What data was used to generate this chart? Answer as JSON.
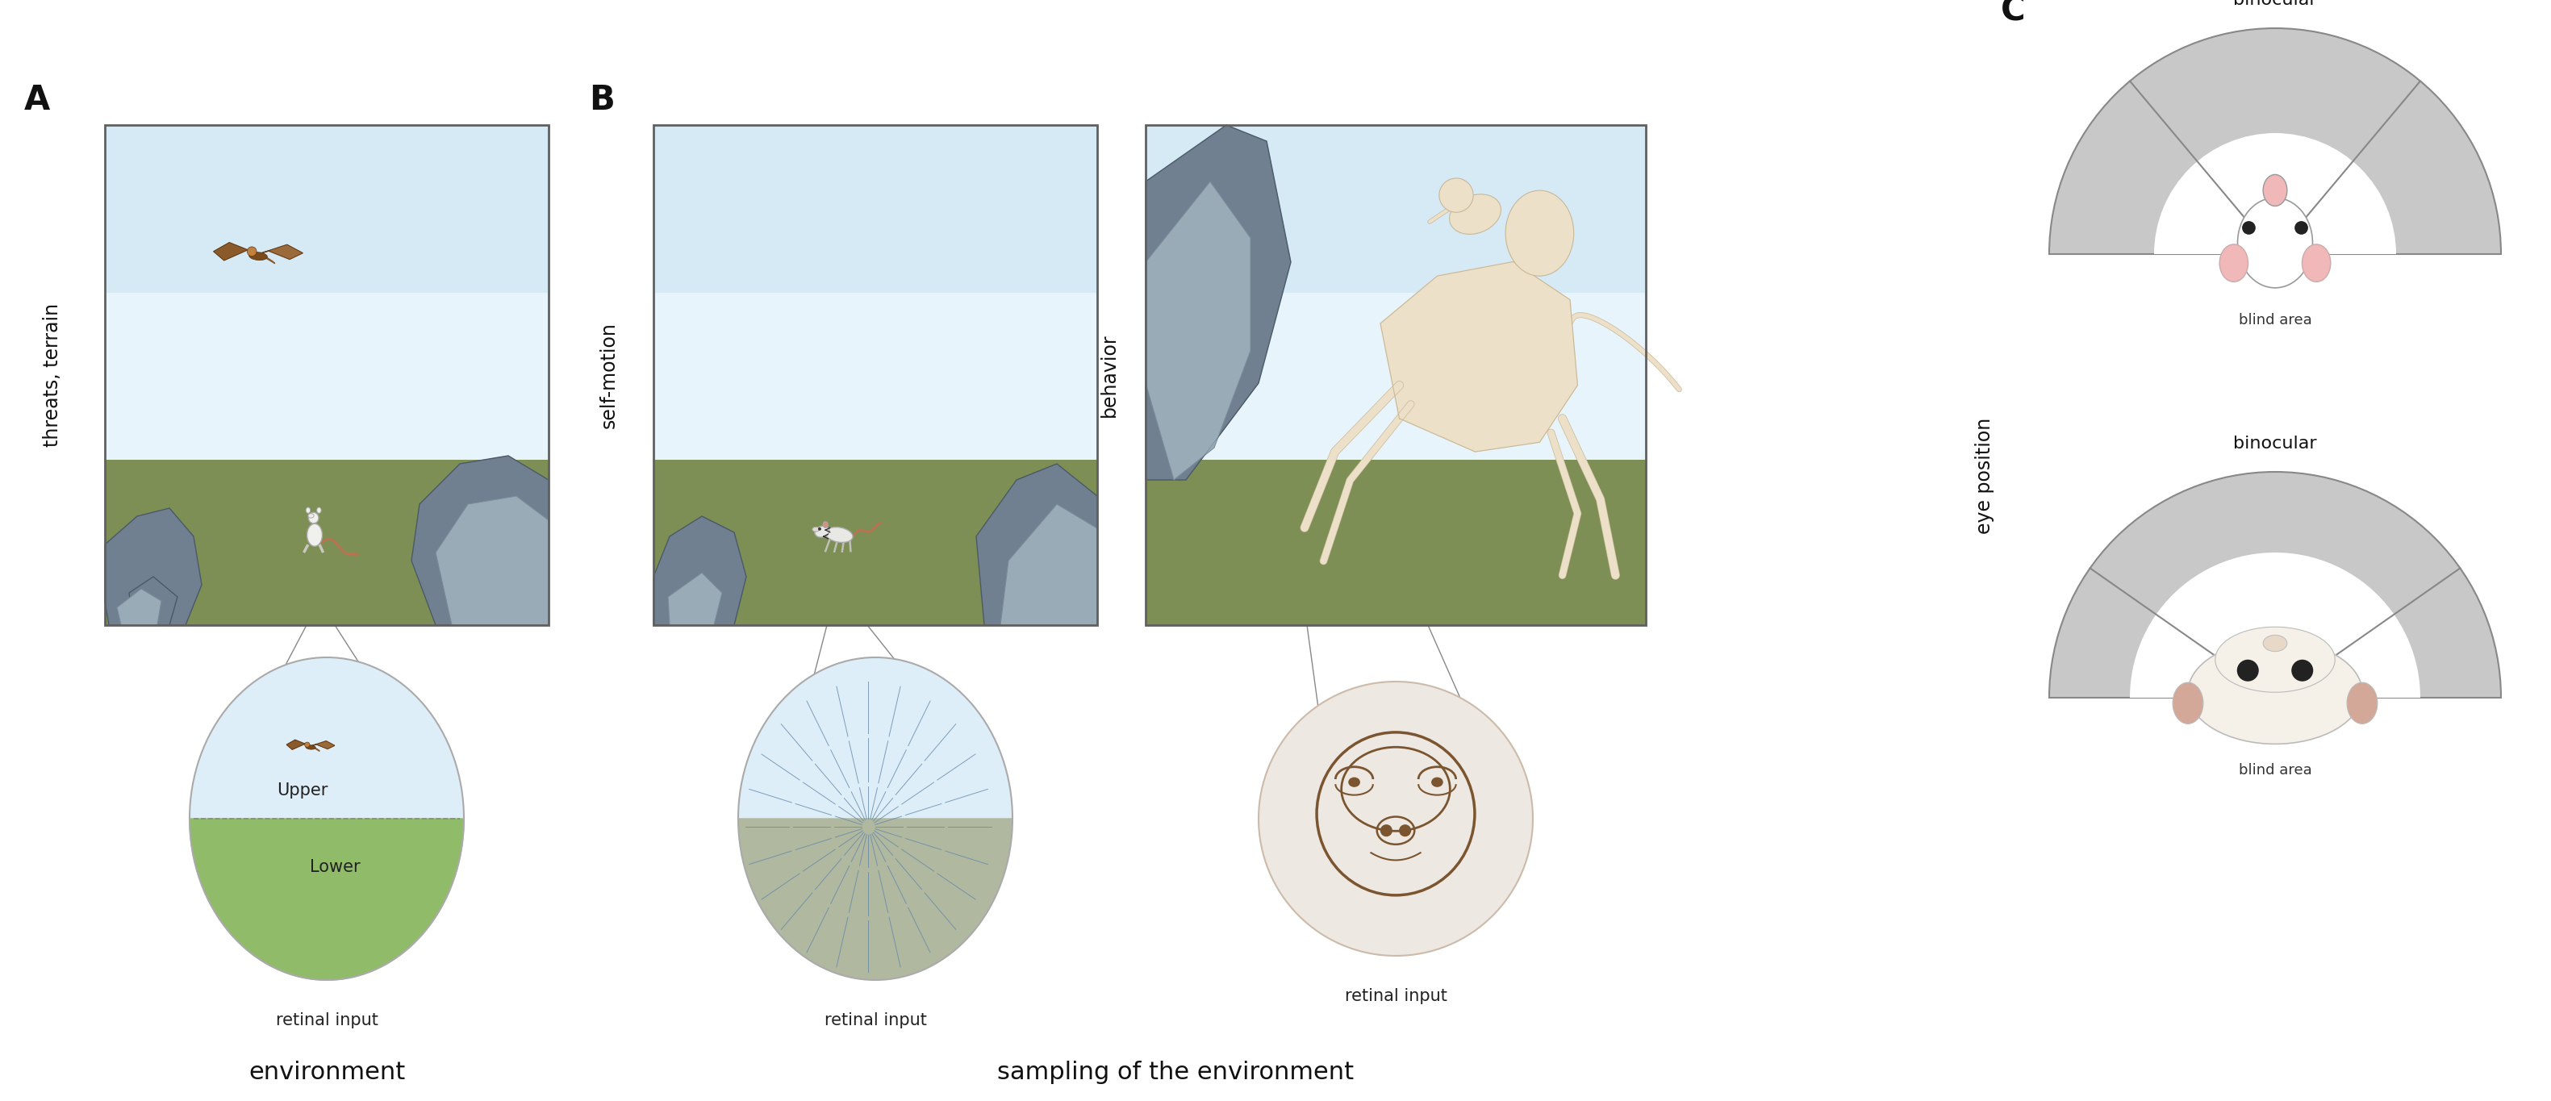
{
  "panel_A_label": "A",
  "panel_B_label": "B",
  "panel_C_label": "C",
  "label_A_vertical": "threats, terrain",
  "label_B_vertical": "self-motion",
  "label_B2_vertical": "behavior",
  "label_C_vertical": "eye position",
  "label_A_bottom": "environment",
  "label_B_bottom": "sampling of the environment",
  "text_retinal_input": "retinal input",
  "text_upper": "Upper",
  "text_lower": "Lower",
  "text_binocular_top": "binocular",
  "text_binocular_bottom": "binocular",
  "text_blind_area_top": "blind area",
  "text_blind_area_bottom": "blind area",
  "bg_color": "#ffffff",
  "sky_color": "#d5eaf5",
  "sky_color2": "#e8f4fb",
  "ground_color": "#7d8f54",
  "ground_color_dark": "#6b7a46",
  "rock_color": "#708090",
  "rock_edge": "#4a5a68",
  "ellipse_A_upper": "#ddeef8",
  "ellipse_A_lower": "#90bc6a",
  "ellipse_B_color": "#ddeef8",
  "ellipse_C_color": "#f5ede8",
  "fan_outer_color": "#c0c0c0",
  "fan_inner_color": "#ffffff",
  "ear_color_mouse": "#f0b8b8",
  "ear_color_macaque": "#d4a898",
  "nose_color_mouse": "#f0b8b8"
}
